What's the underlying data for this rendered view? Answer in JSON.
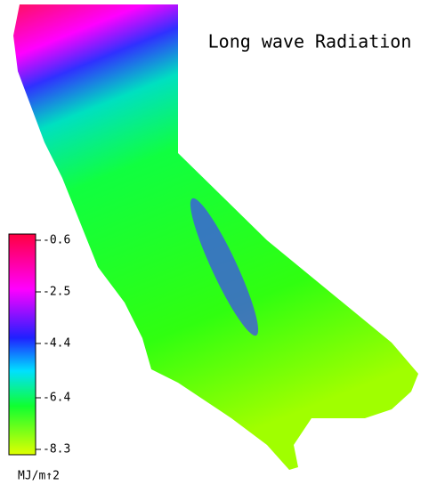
{
  "title": "Long wave Radiation",
  "legend": {
    "ticks": [
      -0.6,
      -2.5,
      -4.4,
      -6.4,
      -8.3
    ],
    "unit": "MJ/m↑2"
  }
}
